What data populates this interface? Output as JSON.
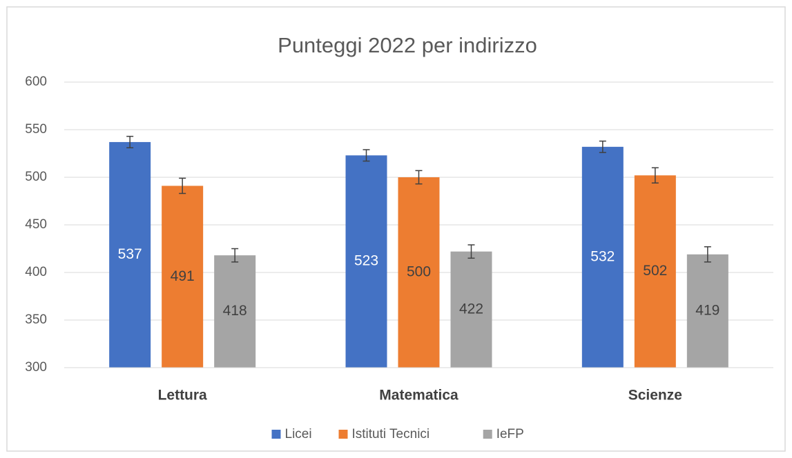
{
  "chart_data": {
    "type": "bar",
    "title": "Punteggi 2022 per indirizzo",
    "categories": [
      "Lettura",
      "Matematica",
      "Scienze"
    ],
    "series": [
      {
        "name": "Licei",
        "color": "#4472c4",
        "values": [
          537,
          523,
          532
        ],
        "errors": [
          6,
          6,
          6
        ]
      },
      {
        "name": "Istituti Tecnici",
        "color": "#ed7d31",
        "values": [
          491,
          500,
          502
        ],
        "errors": [
          8,
          7,
          8
        ]
      },
      {
        "name": "IeFP",
        "color": "#a5a5a5",
        "values": [
          418,
          422,
          419
        ],
        "errors": [
          7,
          7,
          8
        ]
      }
    ],
    "ylim": [
      300,
      600
    ],
    "yticks": [
      300,
      350,
      400,
      450,
      500,
      550,
      600
    ],
    "grid": true,
    "legend": "bottom"
  }
}
